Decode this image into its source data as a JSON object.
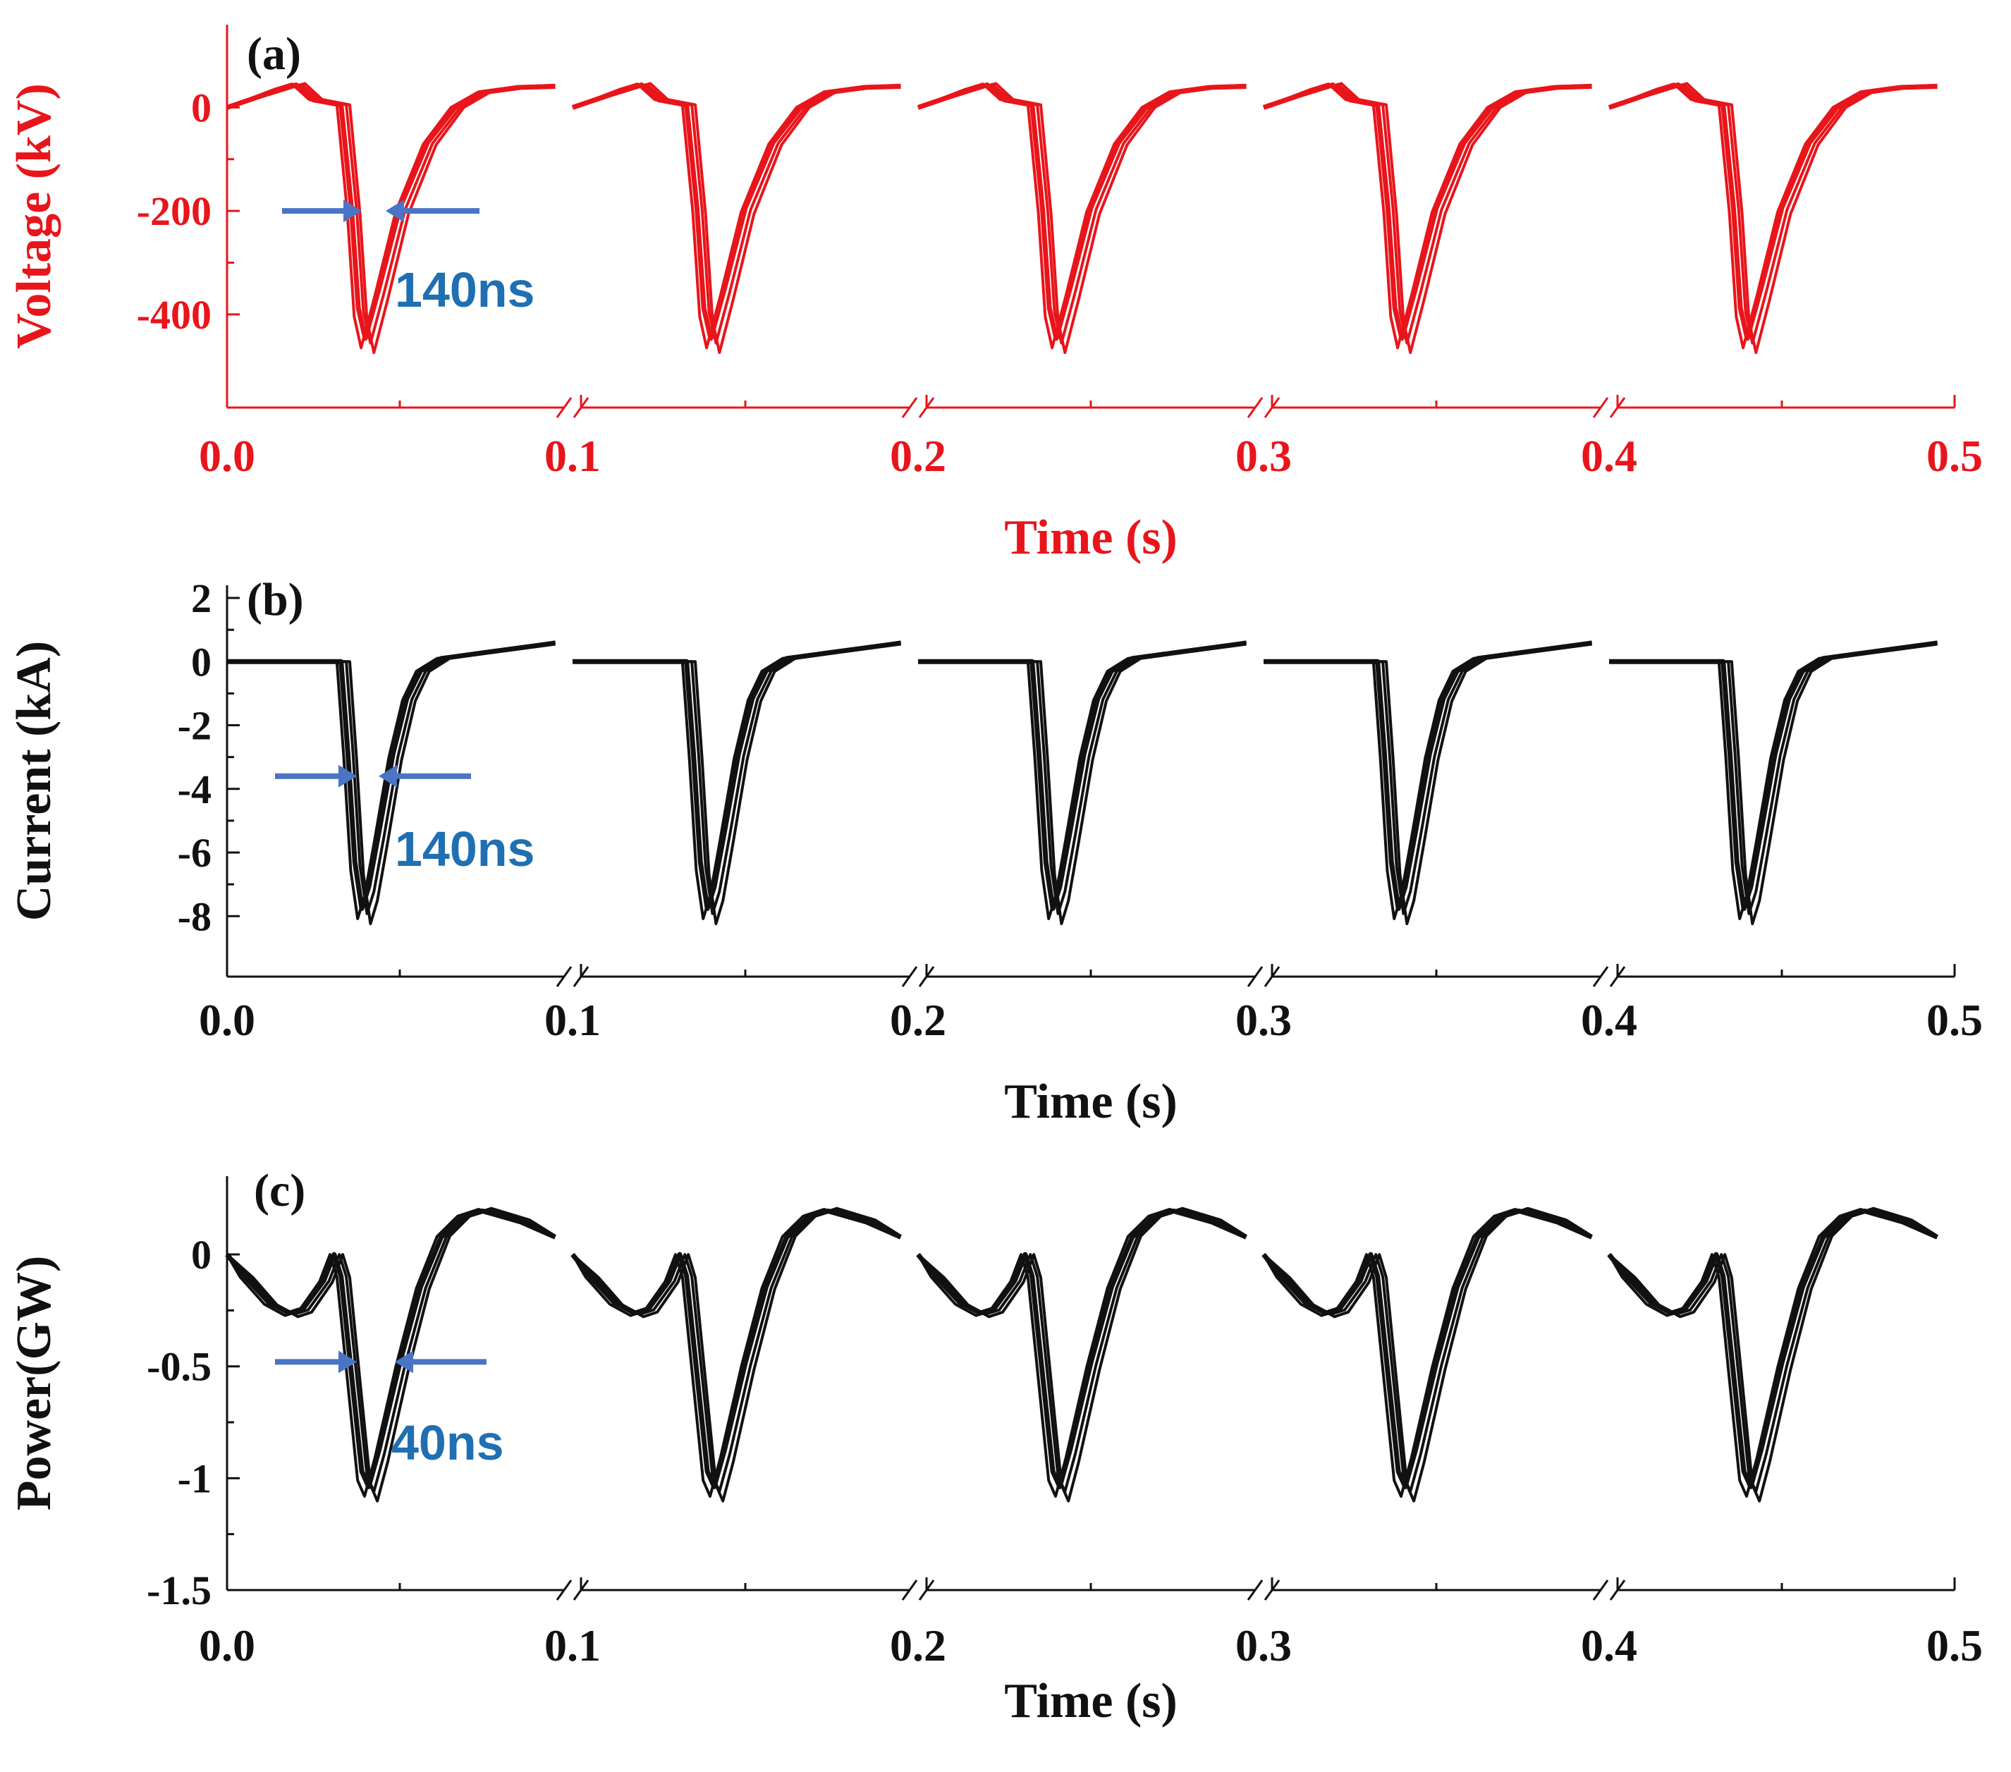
{
  "colors": {
    "voltage": "#e8151b",
    "black": "#111111",
    "annotation": "#1f6fb2",
    "arrow": "#4a74c4"
  },
  "chart_data": [
    {
      "type": "line",
      "panel_label": "(a)",
      "title": "",
      "ylabel": "Voltage (kV)",
      "xlabel": "Time (s)",
      "ylim": [
        -580,
        160
      ],
      "yticks": [
        0,
        -200,
        -400
      ],
      "ytick_labels": [
        "0",
        "-200",
        "-400"
      ],
      "xlim": [
        0.0,
        0.5
      ],
      "xticks": [
        0.0,
        0.1,
        0.2,
        0.3,
        0.4,
        0.5
      ],
      "xtick_labels": [
        "0.0",
        "0.1",
        "0.2",
        "0.3",
        "0.4",
        "0.5"
      ],
      "axis_breaks": [
        0.1,
        0.2,
        0.3,
        0.4
      ],
      "color_key": "voltage",
      "pulse_times": [
        0.0,
        0.1,
        0.2,
        0.3,
        0.4
      ],
      "pulse_shape": {
        "x": [
          0.0,
          0.015,
          0.02,
          0.025,
          0.033,
          0.036,
          0.038,
          0.04,
          0.044,
          0.05,
          0.058,
          0.066,
          0.074,
          0.085,
          0.095
        ],
        "y": [
          0,
          35,
          45,
          15,
          5,
          -200,
          -400,
          -460,
          -360,
          -200,
          -70,
          0,
          30,
          40,
          42
        ]
      },
      "annotation": {
        "text": "140ns",
        "level": -200
      }
    },
    {
      "type": "line",
      "panel_label": "(b)",
      "title": "",
      "ylabel": "Current (kA)",
      "xlabel": "Time (s)",
      "ylim": [
        -9.9,
        2.4
      ],
      "yticks": [
        2,
        0,
        -2,
        -4,
        -6,
        -8
      ],
      "ytick_labels": [
        "2",
        "0",
        "-2",
        "-4",
        "-6",
        "-8"
      ],
      "xlim": [
        0.0,
        0.5
      ],
      "xticks": [
        0.0,
        0.1,
        0.2,
        0.3,
        0.4,
        0.5
      ],
      "xtick_labels": [
        "0.0",
        "0.1",
        "0.2",
        "0.3",
        "0.4",
        "0.5"
      ],
      "axis_breaks": [
        0.1,
        0.2,
        0.3,
        0.4
      ],
      "color_key": "black",
      "pulse_times": [
        0.0,
        0.1,
        0.2,
        0.3,
        0.4
      ],
      "pulse_shape": {
        "x": [
          0.0,
          0.02,
          0.033,
          0.035,
          0.037,
          0.039,
          0.041,
          0.044,
          0.048,
          0.052,
          0.056,
          0.062,
          0.075,
          0.095
        ],
        "y": [
          0,
          0,
          0,
          -3,
          -6.5,
          -8.0,
          -7.3,
          -5.5,
          -3.0,
          -1.2,
          -0.3,
          0.1,
          0.3,
          0.6
        ]
      },
      "annotation": {
        "text": "140ns",
        "level": -3.6
      }
    },
    {
      "type": "line",
      "panel_label": "(c)",
      "title": "",
      "ylabel": "Power(GW)",
      "xlabel": "Time (s)",
      "ylim": [
        -1.5,
        0.35
      ],
      "yticks": [
        0,
        -0.5,
        -1,
        -1.5
      ],
      "ytick_labels": [
        "0",
        "-0.5",
        "-1",
        "-1.5"
      ],
      "xlim": [
        0.0,
        0.5
      ],
      "xticks": [
        0.0,
        0.1,
        0.2,
        0.3,
        0.4,
        0.5
      ],
      "xtick_labels": [
        "0.0",
        "0.1",
        "0.2",
        "0.3",
        "0.4",
        "0.5"
      ],
      "axis_breaks": [
        0.1,
        0.2,
        0.3,
        0.4
      ],
      "color_key": "black",
      "pulse_times": [
        0.0,
        0.1,
        0.2,
        0.3,
        0.4
      ],
      "pulse_shape": {
        "x": [
          0.0,
          0.005,
          0.012,
          0.018,
          0.022,
          0.028,
          0.031,
          0.033,
          0.036,
          0.039,
          0.041,
          0.044,
          0.05,
          0.056,
          0.062,
          0.068,
          0.074,
          0.085,
          0.095
        ],
        "y": [
          0,
          -0.1,
          -0.22,
          -0.27,
          -0.25,
          -0.12,
          0.0,
          -0.1,
          -0.55,
          -1.0,
          -1.07,
          -0.9,
          -0.5,
          -0.15,
          0.08,
          0.17,
          0.2,
          0.15,
          0.08
        ]
      },
      "annotation": {
        "text": "40ns",
        "level": -0.48
      }
    }
  ]
}
